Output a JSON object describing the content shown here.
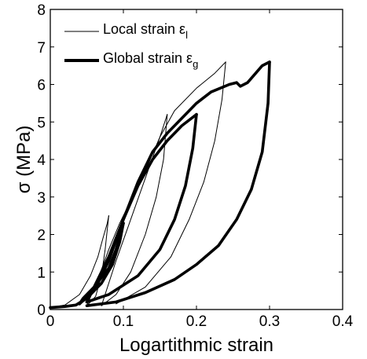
{
  "chart_data": {
    "type": "line",
    "xlabel": "Logartithmic strain",
    "ylabel": "σ (MPa)",
    "xlim": [
      0,
      0.4
    ],
    "ylim": [
      0,
      8
    ],
    "xticks": [
      0,
      0.1,
      0.2,
      0.3,
      0.4
    ],
    "yticks": [
      0,
      1,
      2,
      3,
      4,
      5,
      6,
      7,
      8
    ],
    "grid": false,
    "legend_position": "top-left",
    "series": [
      {
        "name": "Local strain ε",
        "name_subscript": "l",
        "line_color": "#000000",
        "line_weight": "thin",
        "segments": [
          [
            [
              0.0,
              0.05
            ],
            [
              0.02,
              0.12
            ],
            [
              0.04,
              0.4
            ],
            [
              0.055,
              0.9
            ],
            [
              0.065,
              1.4
            ],
            [
              0.072,
              1.9
            ],
            [
              0.078,
              2.3
            ],
            [
              0.08,
              2.5
            ]
          ],
          [
            [
              0.08,
              2.5
            ],
            [
              0.075,
              1.6
            ],
            [
              0.07,
              0.9
            ],
            [
              0.062,
              0.35
            ],
            [
              0.05,
              0.1
            ]
          ],
          [
            [
              0.05,
              0.1
            ],
            [
              0.065,
              0.8
            ],
            [
              0.08,
              1.6
            ],
            [
              0.095,
              2.3
            ],
            [
              0.11,
              2.9
            ],
            [
              0.13,
              3.7
            ],
            [
              0.15,
              4.6
            ],
            [
              0.16,
              5.2
            ]
          ],
          [
            [
              0.16,
              5.2
            ],
            [
              0.155,
              4.0
            ],
            [
              0.145,
              3.0
            ],
            [
              0.13,
              2.0
            ],
            [
              0.11,
              1.0
            ],
            [
              0.09,
              0.4
            ],
            [
              0.07,
              0.1
            ]
          ],
          [
            [
              0.07,
              0.1
            ],
            [
              0.09,
              1.3
            ],
            [
              0.11,
              2.4
            ],
            [
              0.13,
              3.5
            ],
            [
              0.15,
              4.6
            ],
            [
              0.17,
              5.3
            ],
            [
              0.2,
              5.9
            ],
            [
              0.225,
              6.3
            ],
            [
              0.24,
              6.6
            ]
          ],
          [
            [
              0.24,
              6.6
            ],
            [
              0.235,
              5.6
            ],
            [
              0.225,
              4.5
            ],
            [
              0.21,
              3.4
            ],
            [
              0.19,
              2.4
            ],
            [
              0.165,
              1.4
            ],
            [
              0.13,
              0.6
            ],
            [
              0.09,
              0.15
            ]
          ]
        ]
      },
      {
        "name": "Global strain ε",
        "name_subscript": "g",
        "line_color": "#000000",
        "line_weight": "thick",
        "segments": [
          [
            [
              0.0,
              0.05
            ],
            [
              0.02,
              0.08
            ],
            [
              0.035,
              0.12
            ],
            [
              0.05,
              0.3
            ],
            [
              0.07,
              0.7
            ],
            [
              0.085,
              1.2
            ],
            [
              0.095,
              1.8
            ],
            [
              0.1,
              2.3
            ]
          ],
          [
            [
              0.1,
              2.3
            ],
            [
              0.09,
              1.6
            ],
            [
              0.08,
              1.1
            ],
            [
              0.06,
              0.6
            ],
            [
              0.045,
              0.3
            ],
            [
              0.04,
              0.15
            ]
          ],
          [
            [
              0.04,
              0.15
            ],
            [
              0.06,
              0.5
            ],
            [
              0.08,
              1.3
            ],
            [
              0.1,
              2.4
            ],
            [
              0.12,
              3.3
            ],
            [
              0.14,
              4.0
            ],
            [
              0.16,
              4.5
            ],
            [
              0.18,
              4.9
            ],
            [
              0.2,
              5.2
            ]
          ],
          [
            [
              0.2,
              5.2
            ],
            [
              0.195,
              4.3
            ],
            [
              0.185,
              3.3
            ],
            [
              0.17,
              2.4
            ],
            [
              0.15,
              1.6
            ],
            [
              0.12,
              0.9
            ],
            [
              0.08,
              0.4
            ],
            [
              0.05,
              0.2
            ]
          ],
          [
            [
              0.05,
              0.2
            ],
            [
              0.08,
              1.4
            ],
            [
              0.1,
              2.4
            ],
            [
              0.12,
              3.4
            ],
            [
              0.14,
              4.2
            ],
            [
              0.16,
              4.7
            ],
            [
              0.18,
              5.1
            ],
            [
              0.2,
              5.5
            ],
            [
              0.22,
              5.8
            ],
            [
              0.245,
              6.0
            ],
            [
              0.255,
              6.05
            ],
            [
              0.26,
              5.95
            ],
            [
              0.27,
              6.05
            ],
            [
              0.29,
              6.5
            ],
            [
              0.3,
              6.6
            ]
          ],
          [
            [
              0.3,
              6.6
            ],
            [
              0.298,
              5.5
            ],
            [
              0.29,
              4.2
            ],
            [
              0.275,
              3.2
            ],
            [
              0.255,
              2.4
            ],
            [
              0.23,
              1.7
            ],
            [
              0.2,
              1.2
            ],
            [
              0.17,
              0.8
            ],
            [
              0.13,
              0.45
            ],
            [
              0.09,
              0.2
            ],
            [
              0.05,
              0.1
            ]
          ]
        ]
      }
    ]
  }
}
